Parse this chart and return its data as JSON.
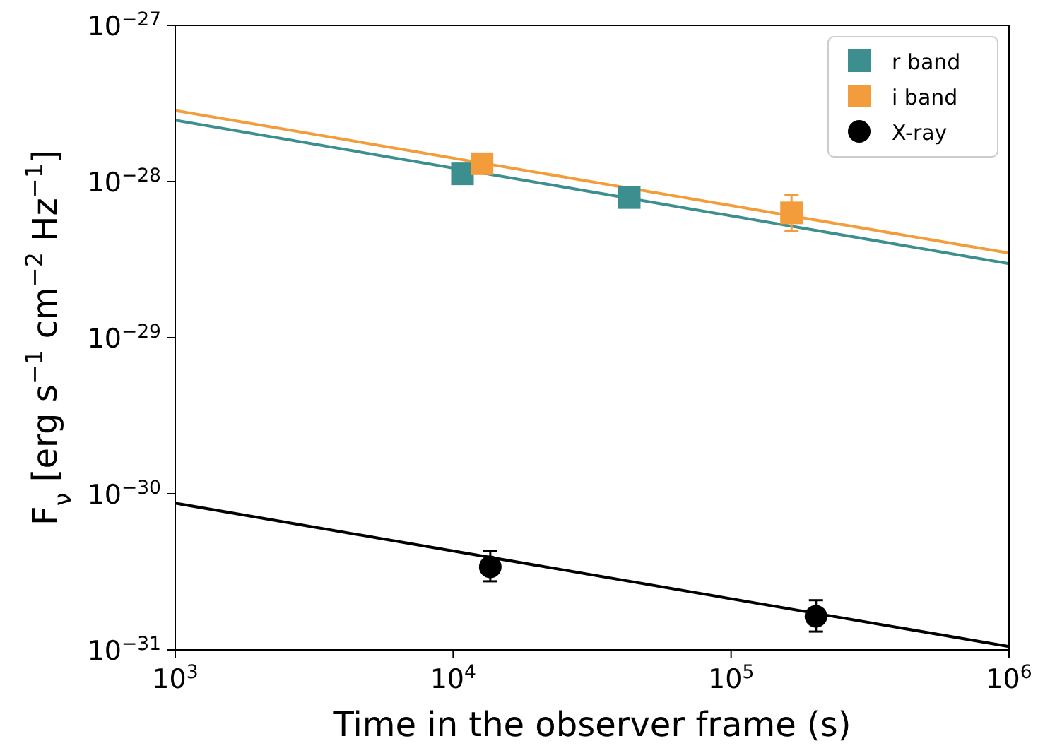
{
  "chart_data": {
    "type": "scatter",
    "xlabel": "Time in the observer frame (s)",
    "ylabel": "F$_{ν}$ [erg s$^{−1}$ cm$^{−2}$ Hz$^{−1}$]",
    "log": "xy",
    "xlim": [
      1000,
      1000000
    ],
    "ylim": [
      1e-31,
      1e-27
    ],
    "xticks": [
      {
        "value": 1000,
        "label": "10$^{3}$"
      },
      {
        "value": 10000,
        "label": "10$^{4}$"
      },
      {
        "value": 100000,
        "label": "10$^{5}$"
      },
      {
        "value": 1000000,
        "label": "10$^{6}$"
      }
    ],
    "yticks": [
      {
        "value": 1e-31,
        "label": "10$^{−31}$"
      },
      {
        "value": 1e-30,
        "label": "10$^{−30}$"
      },
      {
        "value": 1e-29,
        "label": "10$^{−29}$"
      },
      {
        "value": 1e-28,
        "label": "10$^{−28}$"
      },
      {
        "value": 1e-27,
        "label": "10$^{−27}$"
      }
    ],
    "grid": false,
    "legend": "top right",
    "series": [
      {
        "type": "line",
        "color": "#f39c3c",
        "marker": "none",
        "x": [
          1000,
          1000000
        ],
        "values": [
          2.85e-28,
          3.48e-29
        ]
      },
      {
        "type": "line",
        "color": "#3d8f8f",
        "marker": "none",
        "x": [
          1000,
          1000000
        ],
        "values": [
          2.47e-28,
          2.98e-29
        ]
      },
      {
        "type": "line",
        "color": "#000000",
        "marker": "none",
        "x": [
          1000,
          1000000
        ],
        "values": [
          8.7e-31,
          1.05e-31
        ]
      },
      {
        "name": "r band",
        "color": "#3d8f8f",
        "marker": "square",
        "x": [
          10800,
          43000
        ],
        "values": [
          1.12e-28,
          7.9e-29
        ]
      },
      {
        "name": "i band",
        "color": "#f39c3c",
        "marker": "square",
        "x": [
          12700,
          165000
        ],
        "values": [
          1.3e-28,
          6.3e-29
        ],
        "errors": [
          null,
          [
            4.8e-29,
            8.2e-29
          ]
        ]
      },
      {
        "name": "X-ray",
        "color": "#000000",
        "marker": "circle",
        "x": [
          13600,
          202000
        ],
        "values": [
          3.4e-31,
          1.64e-31
        ],
        "errors": [
          [
            2.75e-31,
            4.3e-31
          ],
          [
            1.31e-31,
            2.08e-31
          ]
        ]
      }
    ]
  }
}
